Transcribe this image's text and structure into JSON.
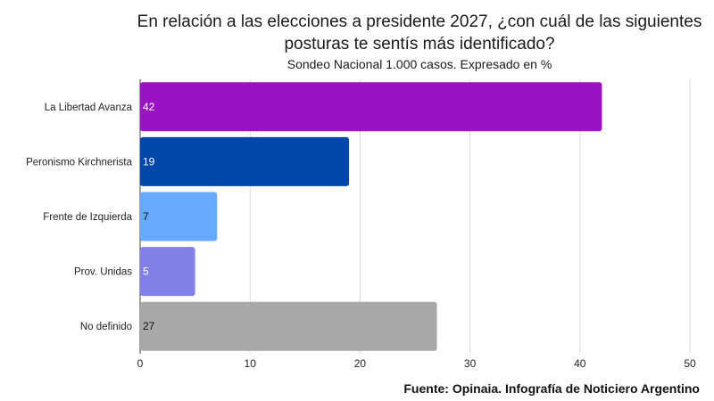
{
  "chart_data": {
    "type": "bar",
    "orientation": "horizontal",
    "title": "En relación a las elecciones a presidente 2027, ¿con cuál de las siguientes posturas te sentís más identificado?",
    "title_lines": [
      "En relación a las elecciones a presidente 2027, ¿con cuál de las siguientes",
      "posturas te sentís más identificado?"
    ],
    "subtitle": "Sondeo Nacional 1.000 casos. Expresado en %",
    "categories": [
      "La Libertad Avanza",
      "Peronismo Kirchnerista",
      "Frente de Izquierda",
      "Prov. Unidas",
      "No definido"
    ],
    "values": [
      42,
      19,
      7,
      5,
      27
    ],
    "value_labels": [
      "42",
      "19",
      "7",
      "5",
      "27"
    ],
    "colors": [
      "#9b12c4",
      "#0047ab",
      "#66aaff",
      "#8080e8",
      "#a8a8a8"
    ],
    "label_colors": [
      "#ffffff",
      "#ffffff",
      "#111111",
      "#ffffff",
      "#111111"
    ],
    "xlim": [
      0,
      50
    ],
    "xticks": [
      0,
      10,
      20,
      30,
      40,
      50
    ],
    "xtick_labels": [
      "0",
      "10",
      "20",
      "30",
      "40",
      "50"
    ],
    "grid": true
  },
  "source": "Fuente: Opinaia. Infografía de Noticiero Argentino"
}
